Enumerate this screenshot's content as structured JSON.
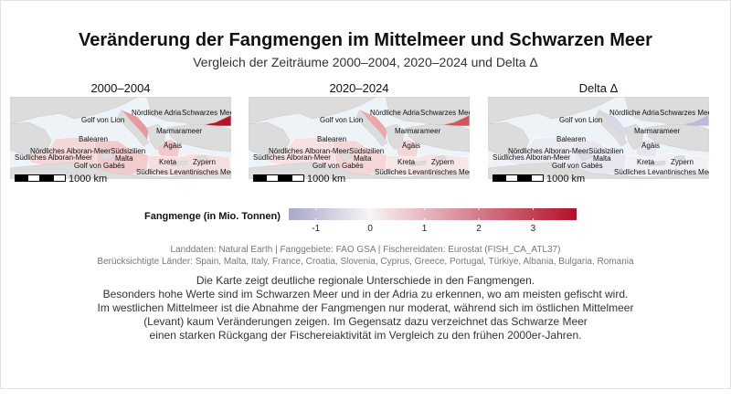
{
  "title": "Veränderung der Fangmengen im Mittelmeer und Schwarzen Meer",
  "subtitle": "Vergleich der Zeiträume 2000–2004, 2020–2024 und Delta Δ",
  "panels": [
    {
      "title": "2000–2004",
      "scale_label": "1000 km",
      "fill": {
        "black_sea": "#b8142a",
        "adriatic": "#e69a9d",
        "aegean": "#f2c9c9",
        "west": "#f4d8d8",
        "central": "#f0cccc",
        "levant": "#f5dede"
      }
    },
    {
      "title": "2020–2024",
      "scale_label": "1000 km",
      "fill": {
        "black_sea": "#d2545c",
        "adriatic": "#eaa8aa",
        "aegean": "#f4d6d6",
        "west": "#f6e2e2",
        "central": "#f3d6d6",
        "levant": "#f7e6e6"
      }
    },
    {
      "title": "Delta Δ",
      "scale_label": "1000 km",
      "fill": {
        "black_sea": "#bcbad8",
        "adriatic": "#dad9ea",
        "aegean": "#e6e5f0",
        "west": "#ecebf3",
        "central": "#e7e6f1",
        "levant": "#f1f0f5"
      }
    }
  ],
  "map_labels": [
    "Nördliche Adria",
    "Schwarzes Meer",
    "Golf von Lion",
    "Marmarameer",
    "Balearen",
    "Ägäis",
    "Nördliches Alboran-Meer",
    "Südsizilien",
    "Südliches Alboran-Meer",
    "Malta",
    "Kreta",
    "Zypern",
    "Golf von Gabès",
    "Südliches Levantinisches Meer"
  ],
  "legend": {
    "title": "Fangmenge (in Mio. Tonnen)",
    "min": -1.5,
    "max": 3.8,
    "ticks": [
      "-1",
      "0",
      "1",
      "2",
      "3"
    ],
    "colors": {
      "low": "#a9a7cc",
      "mid": "#f7f4f4",
      "high": "#b3102a"
    }
  },
  "captions": [
    "Landdaten: Natural Earth | Fanggebiete: FAO GSA | Fischereidaten: Eurostat (FISH_CA_ATL37)",
    "Berücksichtigte Länder: Spain, Malta, Italy, France, Croatia, Slovenia, Cyprus, Greece, Portugal, Türkiye, Albania, Bulgaria, Romania"
  ],
  "summary": [
    "Die Karte zeigt deutliche regionale Unterschiede in den Fangmengen.",
    "Besonders hohe Werte sind im Schwarzen Meer und in der Adria zu erkennen, wo am meisten gefischt wird.",
    "Im westlichen Mittelmeer ist die Abnahme der Fangmengen nur moderat, während sich im östlichen Mittelmeer",
    "(Levant) kaum Veränderungen zeigen. Im Gegensatz dazu verzeichnet das Schwarze Meer",
    "einen starken Rückgang der Fischereiaktivität im Vergleich zu den frühen 2000er-Jahren."
  ]
}
